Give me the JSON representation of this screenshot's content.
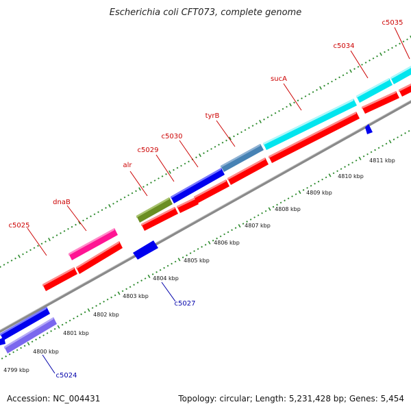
{
  "title": "Escherichia coli CFT073, complete genome",
  "footer": {
    "accession": "Accession: NC_004431",
    "summary": "Topology: circular; Length: 5,231,428 bp; Genes: 5,454"
  },
  "colors": {
    "forward_label": "#cc0000",
    "reverse_label": "#0000aa",
    "backbone": "#8c8c8c",
    "tick": "#2e8b2e",
    "cds": "#ff0000"
  },
  "scale_labels": [
    "4799 kbp",
    "4800 kbp",
    "4801 kbp",
    "4802 kbp",
    "4803 kbp",
    "4804 kbp",
    "4805 kbp",
    "4806 kbp",
    "4807 kbp",
    "4808 kbp",
    "4809 kbp",
    "4810 kbp",
    "4811 kbp"
  ],
  "forward_gene_labels": [
    "c5025",
    "dnaB",
    "alr",
    "c5029",
    "c5030",
    "tyrB",
    "sucA",
    "c5034",
    "c5035"
  ],
  "reverse_gene_labels": [
    "c5027",
    "c5024"
  ]
}
